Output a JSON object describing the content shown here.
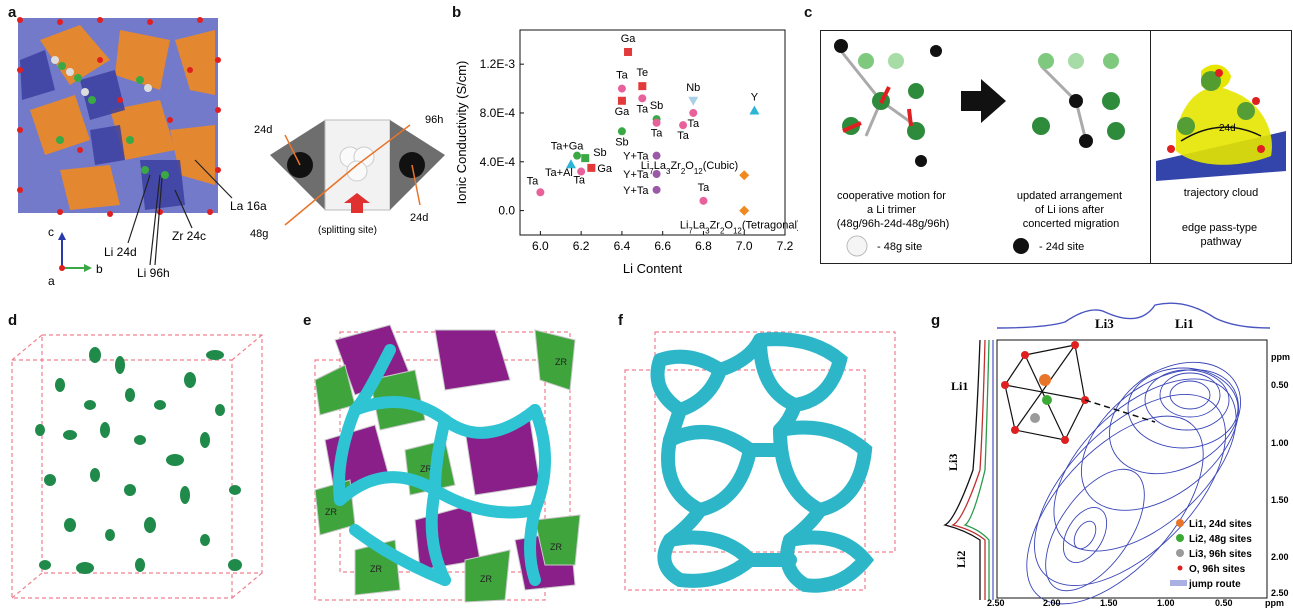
{
  "panels": {
    "a": {
      "label": "a",
      "annotations": [
        "La 16a",
        "Zr 24c",
        "Li 24d",
        "Li 96h"
      ],
      "axes": {
        "c": "c",
        "a": "a",
        "b": "b"
      },
      "inset": {
        "left_site": "24d",
        "right_top": "96h",
        "right_bottom": "24d",
        "bottom_left": "48g",
        "center": "(splitting site)"
      }
    },
    "b": {
      "label": "b"
    },
    "c": {
      "label": "c",
      "caption1": "cooperative motion for\na Li trimer\n(48g/96h-24d-48g/96h)",
      "caption2": "updated arrangement\nof Li ions after\nconcerted migration",
      "legend1": "- 48g site",
      "legend2": "- 24d site",
      "caption3": "trajectory cloud",
      "caption4": "edge pass-type\npathway",
      "site_label": "24d"
    },
    "d": {
      "label": "d"
    },
    "e": {
      "label": "e",
      "zr": "ZR"
    },
    "f": {
      "label": "f"
    },
    "g": {
      "label": "g",
      "top_labels": [
        "Li3",
        "Li1"
      ],
      "left_labels": [
        "Li1",
        "Li3",
        "Li2"
      ],
      "ppm": "ppm",
      "right_ticks": [
        "0.50",
        "1.00",
        "1.50",
        "2.00",
        "2.50"
      ],
      "bottom_ticks": [
        "2.50",
        "2.00",
        "1.50",
        "1.00",
        "0.50",
        "ppm"
      ],
      "legend": [
        "Li1, 24d sites",
        "Li2, 48g sites",
        "Li3, 96h sites",
        "O, 96h sites",
        "jump route"
      ],
      "legend_colors": [
        "#e8742a",
        "#3aaa35",
        "#9a9a9a",
        "#e02020",
        "#5560c8"
      ]
    }
  },
  "chart_data": {
    "type": "scatter",
    "xlabel": "Li Content",
    "ylabel": "Ionic Conductivity (S/cm)",
    "xlim": [
      5.9,
      7.2
    ],
    "ylim": [
      -0.0002,
      0.00148
    ],
    "xticks": [
      "6.0",
      "6.2",
      "6.4",
      "6.6",
      "6.8",
      "7.0",
      "7.2"
    ],
    "yticks": [
      "0.0",
      "4.0E-4",
      "8.0E-4",
      "1.2E-3"
    ],
    "points": [
      {
        "x": 6.0,
        "y": 0.00015,
        "marker": "circle",
        "color": "#e8619a",
        "label": "Ta"
      },
      {
        "x": 6.15,
        "y": 0.00038,
        "marker": "triangle",
        "color": "#2bb6d6",
        "label": "Ta+Al"
      },
      {
        "x": 6.18,
        "y": 0.00045,
        "marker": "circle",
        "color": "#3aa845",
        "label": "Ta+Ga"
      },
      {
        "x": 6.2,
        "y": 0.00032,
        "marker": "circle",
        "color": "#e8619a",
        "label": "Ta"
      },
      {
        "x": 6.25,
        "y": 0.00035,
        "marker": "square",
        "color": "#e23a3a",
        "label": "Ga"
      },
      {
        "x": 6.22,
        "y": 0.00043,
        "marker": "square",
        "color": "#3aa845",
        "label": "Sb"
      },
      {
        "x": 6.4,
        "y": 0.001,
        "marker": "circle",
        "color": "#e8619a",
        "label": "Ta"
      },
      {
        "x": 6.4,
        "y": 0.0009,
        "marker": "square",
        "color": "#e23a3a",
        "label": "Ga"
      },
      {
        "x": 6.4,
        "y": 0.00065,
        "marker": "circle",
        "color": "#3aa845",
        "label": "Sb"
      },
      {
        "x": 6.43,
        "y": 0.0013,
        "marker": "square",
        "color": "#e23a3a",
        "label": "Ga"
      },
      {
        "x": 6.5,
        "y": 0.00102,
        "marker": "square",
        "color": "#e23a3a",
        "label": "Te"
      },
      {
        "x": 6.5,
        "y": 0.00092,
        "marker": "circle",
        "color": "#e8619a",
        "label": "Ta"
      },
      {
        "x": 6.57,
        "y": 0.00075,
        "marker": "circle",
        "color": "#3aa845",
        "label": "Sb"
      },
      {
        "x": 6.57,
        "y": 0.00072,
        "marker": "circle",
        "color": "#e8619a",
        "label": "Ta"
      },
      {
        "x": 6.57,
        "y": 0.00045,
        "marker": "circle",
        "color": "#9a5aa8",
        "label": "Y+Ta"
      },
      {
        "x": 6.57,
        "y": 0.0003,
        "marker": "circle",
        "color": "#9a5aa8",
        "label": "Y+Ta"
      },
      {
        "x": 6.57,
        "y": 0.00017,
        "marker": "circle",
        "color": "#9a5aa8",
        "label": "Y+Ta"
      },
      {
        "x": 6.7,
        "y": 0.0007,
        "marker": "circle",
        "color": "#e8619a",
        "label": "Ta"
      },
      {
        "x": 6.75,
        "y": 0.0009,
        "marker": "triangle-down",
        "color": "#a8d0e8",
        "label": "Nb"
      },
      {
        "x": 6.75,
        "y": 0.0008,
        "marker": "circle",
        "color": "#e8619a",
        "label": "Ta"
      },
      {
        "x": 6.8,
        "y": 8e-05,
        "marker": "circle",
        "color": "#e8619a",
        "label": "Ta"
      },
      {
        "x": 7.05,
        "y": 0.00082,
        "marker": "triangle",
        "color": "#2bb6d6",
        "label": "Y"
      },
      {
        "x": 7.0,
        "y": 0.00029,
        "marker": "diamond",
        "color": "#f08a20",
        "label": "Li7La3Zr2O12(Cubic)"
      },
      {
        "x": 7.0,
        "y": 0.0,
        "marker": "diamond",
        "color": "#f08a20",
        "label": "Li7La3Zr2O12(Tetragonal)"
      }
    ]
  }
}
